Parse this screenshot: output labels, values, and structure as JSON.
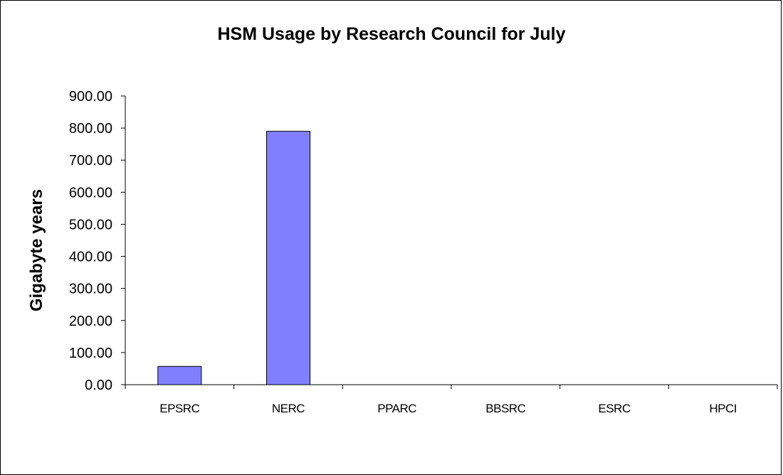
{
  "chart_data": {
    "type": "bar",
    "title": "HSM Usage by Research Council for July",
    "xlabel": "",
    "ylabel": "Gigabyte years",
    "categories": [
      "EPSRC",
      "NERC",
      "PPARC",
      "BBSRC",
      "ESRC",
      "HPCI"
    ],
    "values": [
      57,
      790,
      0,
      0,
      0,
      0
    ],
    "ylim": [
      0,
      900
    ],
    "yticks": [
      "0.00",
      "100.00",
      "200.00",
      "300.00",
      "400.00",
      "500.00",
      "600.00",
      "700.00",
      "800.00",
      "900.00"
    ],
    "grid": false,
    "legend": "none",
    "colors": {
      "bar_fill": "#8080ff",
      "bar_stroke": "#000000"
    }
  }
}
